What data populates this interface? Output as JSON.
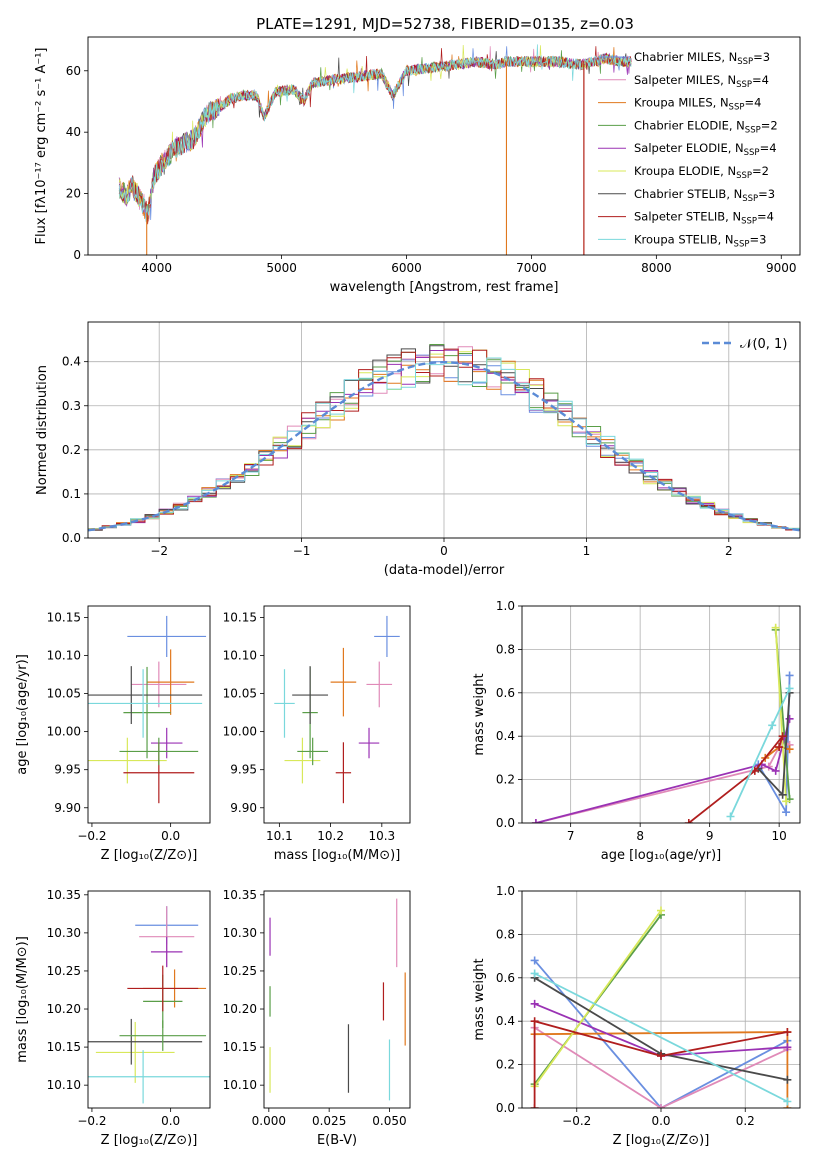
{
  "title": "PLATE=1291, MJD=52738, FIBERID=0135, z=0.03",
  "colors": {
    "chabrier_miles": "#6a8fe0",
    "salpeter_miles": "#e08ab8",
    "kroupa_miles": "#e0781e",
    "chabrier_elodie": "#5a9e48",
    "salpeter_elodie": "#9a32b4",
    "kroupa_elodie": "#d8e85a",
    "chabrier_stelib": "#4a4a4a",
    "salpeter_stelib": "#b01e1e",
    "kroupa_stelib": "#7ad8dc",
    "normal_curve": "#5b8bd6"
  },
  "chart_data": [
    {
      "type": "line",
      "panel": "spectrum",
      "xlabel": "wavelength [Angstrom, rest frame]",
      "ylabel": "Flux [fλ10⁻¹⁷ erg cm⁻² s⁻¹ A⁻¹]",
      "xlim": [
        3450,
        9150
      ],
      "ylim": [
        0,
        71
      ],
      "xticks": [
        4000,
        5000,
        6000,
        7000,
        8000,
        9000
      ],
      "yticks": [
        0,
        20,
        40,
        60
      ],
      "legend_position": "right",
      "legend": [
        {
          "label": "Chabrier MILES, N",
          "sub": "SSP",
          "suffix": "=3",
          "color_key": "chabrier_miles"
        },
        {
          "label": "Salpeter MILES, N",
          "sub": "SSP",
          "suffix": "=4",
          "color_key": "salpeter_miles"
        },
        {
          "label": "Kroupa MILES, N",
          "sub": "SSP",
          "suffix": "=4",
          "color_key": "kroupa_miles"
        },
        {
          "label": "Chabrier ELODIE, N",
          "sub": "SSP",
          "suffix": "=2",
          "color_key": "chabrier_elodie"
        },
        {
          "label": "Salpeter ELODIE, N",
          "sub": "SSP",
          "suffix": "=4",
          "color_key": "salpeter_elodie"
        },
        {
          "label": "Kroupa ELODIE, N",
          "sub": "SSP",
          "suffix": "=2",
          "color_key": "kroupa_elodie"
        },
        {
          "label": "Chabrier STELIB, N",
          "sub": "SSP",
          "suffix": "=3",
          "color_key": "chabrier_stelib"
        },
        {
          "label": "Salpeter STELIB, N",
          "sub": "SSP",
          "suffix": "=4",
          "color_key": "salpeter_stelib"
        },
        {
          "label": "Kroupa STELIB, N",
          "sub": "SSP",
          "suffix": "=3",
          "color_key": "kroupa_stelib"
        }
      ],
      "envelope": [
        [
          3700,
          22
        ],
        [
          3760,
          19
        ],
        [
          3800,
          23
        ],
        [
          3870,
          18
        ],
        [
          3930,
          13
        ],
        [
          3980,
          26
        ],
        [
          4050,
          30
        ],
        [
          4150,
          35
        ],
        [
          4300,
          38
        ],
        [
          4400,
          46
        ],
        [
          4500,
          48
        ],
        [
          4600,
          51
        ],
        [
          4700,
          52
        ],
        [
          4800,
          52
        ],
        [
          4861,
          45
        ],
        [
          4950,
          53
        ],
        [
          5100,
          54
        ],
        [
          5175,
          50
        ],
        [
          5250,
          56
        ],
        [
          5400,
          57
        ],
        [
          5600,
          58
        ],
        [
          5800,
          59
        ],
        [
          5890,
          52
        ],
        [
          6000,
          60
        ],
        [
          6200,
          61
        ],
        [
          6400,
          62
        ],
        [
          6563,
          63
        ],
        [
          6700,
          62
        ],
        [
          6800,
          63
        ],
        [
          7000,
          63
        ],
        [
          7200,
          63
        ],
        [
          7400,
          62
        ],
        [
          7500,
          63
        ],
        [
          7600,
          64
        ],
        [
          7700,
          63
        ],
        [
          7800,
          63
        ]
      ],
      "dips": [
        {
          "x": 3920,
          "y": 0,
          "color_key": "kroupa_miles"
        },
        {
          "x": 6800,
          "y": 0,
          "color_key": "kroupa_miles"
        },
        {
          "x": 7420,
          "y": 0,
          "color_key": "kroupa_miles"
        },
        {
          "x": 7420,
          "y": 0,
          "color_key": "salpeter_stelib"
        }
      ]
    },
    {
      "type": "line",
      "panel": "residuals",
      "xlabel": "(data-model)/error",
      "ylabel": "Normed distribution",
      "xlim": [
        -2.5,
        2.5
      ],
      "ylim": [
        0,
        0.49
      ],
      "xticks": [
        -2,
        -1,
        0,
        1,
        2
      ],
      "yticks": [
        0.0,
        0.1,
        0.2,
        0.3,
        0.4
      ],
      "grid": true,
      "legend_position": "top-right",
      "legend_label": "𝒩(0, 1)",
      "bin_width": 0.1,
      "series": [
        {
          "color_key": "chabrier_miles",
          "seed": 1
        },
        {
          "color_key": "salpeter_miles",
          "seed": 2
        },
        {
          "color_key": "kroupa_miles",
          "seed": 3
        },
        {
          "color_key": "chabrier_elodie",
          "seed": 4
        },
        {
          "color_key": "salpeter_elodie",
          "seed": 5
        },
        {
          "color_key": "kroupa_elodie",
          "seed": 6
        },
        {
          "color_key": "chabrier_stelib",
          "seed": 7
        },
        {
          "color_key": "salpeter_stelib",
          "seed": 8
        },
        {
          "color_key": "kroupa_stelib",
          "seed": 9
        }
      ]
    },
    {
      "type": "scatter",
      "panel": "age_vs_Z",
      "xlabel": "Z [log₁₀(Z/Z⊙)]",
      "ylabel": "age  [log₁₀(age/yr)]",
      "xlim": [
        -0.21,
        0.1
      ],
      "ylim": [
        9.88,
        10.165
      ],
      "xticks": [
        -0.2,
        0.0
      ],
      "yticks": [
        9.9,
        9.95,
        10.0,
        10.05,
        10.1,
        10.15
      ],
      "points": [
        {
          "x": -0.01,
          "xe": 0.1,
          "y": 10.125,
          "ye": 0.027,
          "color_key": "chabrier_miles"
        },
        {
          "x": -0.03,
          "xe": 0.07,
          "y": 10.062,
          "ye": 0.03,
          "color_key": "salpeter_miles"
        },
        {
          "x": 0.0,
          "xe": 0.06,
          "y": 10.065,
          "ye": 0.043,
          "color_key": "kroupa_miles"
        },
        {
          "x": -0.06,
          "xe": 0.06,
          "y": 10.025,
          "ye": 0.06,
          "color_key": "chabrier_elodie"
        },
        {
          "x": -0.01,
          "xe": 0.04,
          "y": 9.985,
          "ye": 0.02,
          "color_key": "salpeter_elodie"
        },
        {
          "x": -0.11,
          "xe": 0.1,
          "y": 9.962,
          "ye": 0.03,
          "color_key": "kroupa_elodie"
        },
        {
          "x": -0.1,
          "xe": 0.18,
          "y": 10.048,
          "ye": 0.038,
          "color_key": "chabrier_stelib"
        },
        {
          "x": -0.03,
          "xe": 0.09,
          "y": 9.946,
          "ye": 0.04,
          "color_key": "salpeter_stelib"
        },
        {
          "x": -0.07,
          "xe": 0.15,
          "y": 10.037,
          "ye": 0.045,
          "color_key": "kroupa_stelib"
        },
        {
          "x": -0.03,
          "xe": 0.1,
          "y": 9.974,
          "ye": 0.018,
          "color_key": "chabrier_elodie"
        }
      ]
    },
    {
      "type": "scatter",
      "panel": "age_vs_mass",
      "xlabel": "mass [log₁₀(M/M⊙)]",
      "ylabel": "",
      "xlim": [
        10.07,
        10.355
      ],
      "ylim": [
        9.88,
        10.165
      ],
      "xticks": [
        10.1,
        10.2,
        10.3
      ],
      "yticks": [
        9.9,
        9.95,
        10.0,
        10.05,
        10.1,
        10.15
      ],
      "points": [
        {
          "x": 10.31,
          "xe": 0.025,
          "y": 10.125,
          "ye": 0.027,
          "color_key": "chabrier_miles"
        },
        {
          "x": 10.295,
          "xe": 0.025,
          "y": 10.062,
          "ye": 0.03,
          "color_key": "salpeter_miles"
        },
        {
          "x": 10.225,
          "xe": 0.025,
          "y": 10.065,
          "ye": 0.045,
          "color_key": "kroupa_miles"
        },
        {
          "x": 10.16,
          "xe": 0.015,
          "y": 10.025,
          "ye": 0.06,
          "color_key": "chabrier_elodie"
        },
        {
          "x": 10.275,
          "xe": 0.02,
          "y": 9.985,
          "ye": 0.02,
          "color_key": "salpeter_elodie"
        },
        {
          "x": 10.145,
          "xe": 0.035,
          "y": 9.962,
          "ye": 0.03,
          "color_key": "kroupa_elodie"
        },
        {
          "x": 10.16,
          "xe": 0.035,
          "y": 10.048,
          "ye": 0.038,
          "color_key": "chabrier_stelib"
        },
        {
          "x": 10.225,
          "xe": 0.015,
          "y": 9.946,
          "ye": 0.04,
          "color_key": "salpeter_stelib"
        },
        {
          "x": 10.11,
          "xe": 0.02,
          "y": 10.037,
          "ye": 0.045,
          "color_key": "kroupa_stelib"
        },
        {
          "x": 10.165,
          "xe": 0.03,
          "y": 9.974,
          "ye": 0.018,
          "color_key": "chabrier_elodie"
        }
      ]
    },
    {
      "type": "line",
      "panel": "weight_vs_age",
      "xlabel": "age  [log₁₀(age/yr)]",
      "ylabel": "mass weight",
      "xlim": [
        6.3,
        10.3
      ],
      "ylim": [
        0,
        1.0
      ],
      "xticks": [
        7,
        8,
        9,
        10
      ],
      "yticks": [
        0.0,
        0.2,
        0.4,
        0.6,
        0.8,
        1.0
      ],
      "grid": true,
      "series": [
        {
          "color_key": "chabrier_miles",
          "points": [
            [
              9.7,
              0.27
            ],
            [
              10.1,
              0.05
            ],
            [
              10.15,
              0.68
            ]
          ]
        },
        {
          "color_key": "salpeter_miles",
          "points": [
            [
              6.5,
              0.0
            ],
            [
              9.85,
              0.26
            ],
            [
              10.05,
              0.38
            ],
            [
              10.15,
              0.36
            ]
          ]
        },
        {
          "color_key": "kroupa_miles",
          "points": [
            [
              9.8,
              0.3
            ],
            [
              10.0,
              0.35
            ],
            [
              10.15,
              0.34
            ]
          ]
        },
        {
          "color_key": "chabrier_elodie",
          "points": [
            [
              9.95,
              0.89
            ],
            [
              10.15,
              0.11
            ]
          ]
        },
        {
          "color_key": "salpeter_elodie",
          "points": [
            [
              6.5,
              0.0
            ],
            [
              9.75,
              0.27
            ],
            [
              9.95,
              0.24
            ],
            [
              10.15,
              0.48
            ]
          ]
        },
        {
          "color_key": "kroupa_elodie",
          "points": [
            [
              9.95,
              0.9
            ],
            [
              10.1,
              0.1
            ]
          ]
        },
        {
          "color_key": "chabrier_stelib",
          "points": [
            [
              9.7,
              0.25
            ],
            [
              10.05,
              0.13
            ],
            [
              10.15,
              0.6
            ]
          ]
        },
        {
          "color_key": "salpeter_stelib",
          "points": [
            [
              8.7,
              0.0
            ],
            [
              9.65,
              0.24
            ],
            [
              10.05,
              0.4
            ],
            [
              10.0,
              0.35
            ]
          ]
        },
        {
          "color_key": "kroupa_stelib",
          "points": [
            [
              9.3,
              0.03
            ],
            [
              9.9,
              0.45
            ],
            [
              10.15,
              0.62
            ]
          ]
        }
      ]
    },
    {
      "type": "scatter",
      "panel": "mass_vs_Z",
      "xlabel": "Z [log₁₀(Z/Z⊙)]",
      "ylabel": "mass [log₁₀(M/M⊙)]",
      "xlim": [
        -0.21,
        0.1
      ],
      "ylim": [
        10.07,
        10.355
      ],
      "xticks": [
        -0.2,
        0.0
      ],
      "yticks": [
        10.1,
        10.15,
        10.2,
        10.25,
        10.3,
        10.35
      ],
      "points": [
        {
          "x": -0.01,
          "xe": 0.08,
          "y": 10.31,
          "ye": 0.025,
          "color_key": "chabrier_miles"
        },
        {
          "x": -0.01,
          "xe": 0.07,
          "y": 10.295,
          "ye": 0.04,
          "color_key": "salpeter_miles"
        },
        {
          "x": 0.01,
          "xe": 0.08,
          "y": 10.227,
          "ye": 0.025,
          "color_key": "kroupa_miles"
        },
        {
          "x": -0.02,
          "xe": 0.05,
          "y": 10.21,
          "ye": 0.035,
          "color_key": "chabrier_elodie"
        },
        {
          "x": -0.01,
          "xe": 0.04,
          "y": 10.275,
          "ye": 0.02,
          "color_key": "salpeter_elodie"
        },
        {
          "x": -0.09,
          "xe": 0.1,
          "y": 10.143,
          "ye": 0.04,
          "color_key": "kroupa_elodie"
        },
        {
          "x": -0.1,
          "xe": 0.18,
          "y": 10.157,
          "ye": 0.03,
          "color_key": "chabrier_stelib"
        },
        {
          "x": -0.02,
          "xe": 0.09,
          "y": 10.227,
          "ye": 0.03,
          "color_key": "salpeter_stelib"
        },
        {
          "x": -0.07,
          "xe": 0.17,
          "y": 10.111,
          "ye": 0.035,
          "color_key": "kroupa_stelib"
        },
        {
          "x": -0.02,
          "xe": 0.11,
          "y": 10.165,
          "ye": 0.02,
          "color_key": "chabrier_elodie"
        }
      ]
    },
    {
      "type": "scatter",
      "panel": "mass_vs_EBV",
      "xlabel": "E(B-V)",
      "ylabel": "",
      "xlim": [
        -0.002,
        0.0585
      ],
      "ylim": [
        10.07,
        10.355
      ],
      "xticks": [
        0.0,
        0.025,
        0.05
      ],
      "yticks": [
        10.1,
        10.15,
        10.2,
        10.25,
        10.3,
        10.35
      ],
      "points": [
        {
          "x": 0.0005,
          "y": 10.295,
          "ye": 0.025,
          "color_key": "salpeter_elodie"
        },
        {
          "x": 0.0005,
          "y": 10.21,
          "ye": 0.02,
          "color_key": "chabrier_elodie"
        },
        {
          "x": 0.0005,
          "y": 10.12,
          "ye": 0.03,
          "color_key": "kroupa_elodie"
        },
        {
          "x": 0.033,
          "y": 10.135,
          "ye": 0.045,
          "color_key": "chabrier_stelib"
        },
        {
          "x": 0.0475,
          "y": 10.21,
          "ye": 0.025,
          "color_key": "salpeter_stelib"
        },
        {
          "x": 0.05,
          "y": 10.12,
          "ye": 0.04,
          "color_key": "kroupa_stelib"
        },
        {
          "x": 0.053,
          "y": 10.3,
          "ye": 0.045,
          "color_key": "salpeter_miles"
        },
        {
          "x": 0.0565,
          "y": 10.2,
          "ye": 0.048,
          "color_key": "kroupa_miles"
        }
      ]
    },
    {
      "type": "line",
      "panel": "weight_vs_Z",
      "xlabel": "Z [log₁₀(Z/Z⊙)]",
      "ylabel": "mass weight",
      "xlim": [
        -0.33,
        0.33
      ],
      "ylim": [
        0,
        1.0
      ],
      "xticks": [
        -0.2,
        0.0,
        0.2
      ],
      "yticks": [
        0.0,
        0.2,
        0.4,
        0.6,
        0.8,
        1.0
      ],
      "grid": true,
      "series": [
        {
          "color_key": "chabrier_miles",
          "points": [
            [
              -0.3,
              0.68
            ],
            [
              0.0,
              0.0
            ],
            [
              0.3,
              0.31
            ]
          ]
        },
        {
          "color_key": "salpeter_miles",
          "points": [
            [
              -0.3,
              0.37
            ],
            [
              0.0,
              0.0
            ],
            [
              0.3,
              0.27
            ]
          ]
        },
        {
          "color_key": "kroupa_miles",
          "points": [
            [
              -0.3,
              0.34
            ],
            [
              0.3,
              0.35
            ],
            [
              0.3,
              0.0
            ]
          ]
        },
        {
          "color_key": "chabrier_elodie",
          "points": [
            [
              -0.3,
              0.11
            ],
            [
              0.0,
              0.89
            ]
          ]
        },
        {
          "color_key": "salpeter_elodie",
          "points": [
            [
              -0.3,
              0.48
            ],
            [
              0.0,
              0.24
            ],
            [
              0.3,
              0.28
            ]
          ]
        },
        {
          "color_key": "kroupa_elodie",
          "points": [
            [
              -0.3,
              0.1
            ],
            [
              0.0,
              0.91
            ]
          ]
        },
        {
          "color_key": "chabrier_stelib",
          "points": [
            [
              -0.3,
              0.6
            ],
            [
              0.0,
              0.25
            ],
            [
              0.3,
              0.13
            ]
          ]
        },
        {
          "color_key": "salpeter_stelib",
          "points": [
            [
              -0.3,
              0.0
            ],
            [
              -0.3,
              0.4
            ],
            [
              0.0,
              0.24
            ],
            [
              0.3,
              0.35
            ]
          ]
        },
        {
          "color_key": "kroupa_stelib",
          "points": [
            [
              -0.3,
              0.62
            ],
            [
              0.3,
              0.03
            ]
          ]
        }
      ]
    }
  ]
}
